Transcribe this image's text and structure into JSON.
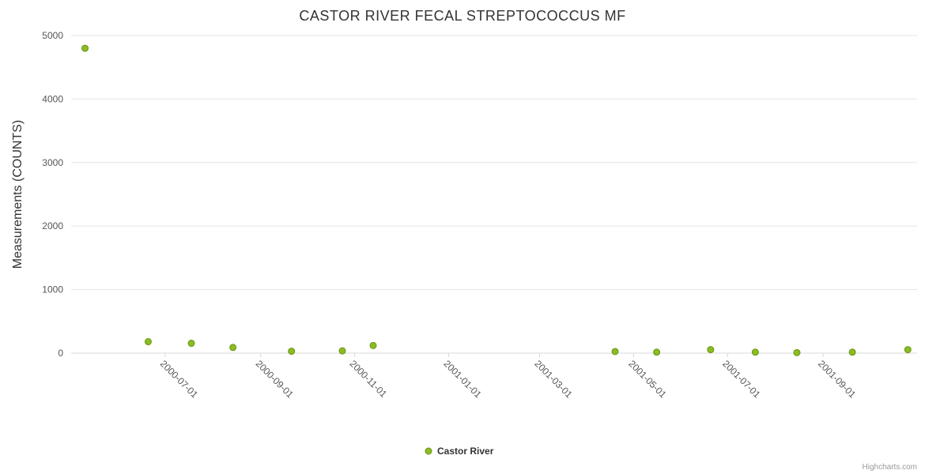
{
  "chart": {
    "credit": "Highcharts.com"
  },
  "chart_data": {
    "type": "scatter",
    "title": "CASTOR RIVER FECAL STREPTOCOCCUS MF",
    "xlabel": "",
    "ylabel": "Measurements (COUNTS)",
    "ylim": [
      0,
      5000
    ],
    "y_ticks": [
      0,
      1000,
      2000,
      3000,
      4000,
      5000
    ],
    "x_ticks": [
      "2000-07-01",
      "2000-09-01",
      "2000-11-01",
      "2001-01-01",
      "2001-03-01",
      "2001-05-01",
      "2001-07-01",
      "2001-09-01"
    ],
    "x_range": [
      "2000-05-01",
      "2001-11-01"
    ],
    "grid": true,
    "legend_position": "bottom-center",
    "colors": {
      "marker": "#8bbc21",
      "marker_stroke": "#6a9417",
      "gridline": "#e6e6e6",
      "axis_line": "#d8d8d8",
      "tick_label": "#555555",
      "title_text": "#333333",
      "credit_text": "#999999"
    },
    "series": [
      {
        "name": "Castor River",
        "points": [
          {
            "x": "2000-05-10",
            "y": 4800
          },
          {
            "x": "2000-06-20",
            "y": 180
          },
          {
            "x": "2000-07-18",
            "y": 155
          },
          {
            "x": "2000-08-14",
            "y": 90
          },
          {
            "x": "2000-09-21",
            "y": 30
          },
          {
            "x": "2000-10-24",
            "y": 35
          },
          {
            "x": "2000-11-13",
            "y": 120
          },
          {
            "x": "2001-04-19",
            "y": 25
          },
          {
            "x": "2001-05-16",
            "y": 15
          },
          {
            "x": "2001-06-20",
            "y": 55
          },
          {
            "x": "2001-07-19",
            "y": 15
          },
          {
            "x": "2001-08-15",
            "y": 8
          },
          {
            "x": "2001-09-20",
            "y": 15
          },
          {
            "x": "2001-10-26",
            "y": 55
          }
        ]
      }
    ]
  }
}
